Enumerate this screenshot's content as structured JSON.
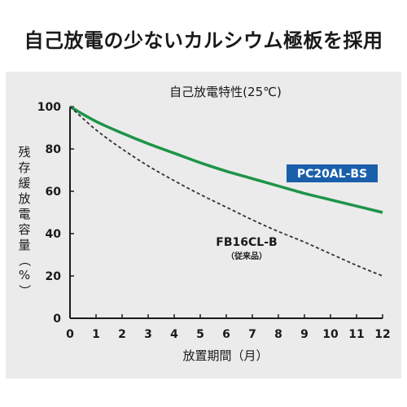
{
  "headline": "自己放電の少ないカルシウム極板を採用",
  "colors": {
    "panel_bg": "#ebebeb",
    "series_green": "#1e9448",
    "series_dashed": "#333333",
    "label_box": "#1a5fab"
  },
  "chart_data": {
    "type": "line",
    "title": "自己放電特性(25℃)",
    "xlabel": "放置期間（月）",
    "ylabel": "残存緩放電容量（%）",
    "xlim": [
      0,
      12
    ],
    "ylim": [
      0,
      100
    ],
    "xticks": [
      "0",
      "1",
      "2",
      "3",
      "4",
      "5",
      "6",
      "7",
      "8",
      "9",
      "10",
      "11",
      "12"
    ],
    "yticks": [
      "0",
      "20",
      "40",
      "60",
      "80",
      "100"
    ],
    "grid": false,
    "series": [
      {
        "name": "PC20AL-BS",
        "style": "solid",
        "x": [
          0,
          1,
          2,
          3,
          4,
          5,
          6,
          7,
          8,
          9,
          10,
          11,
          12
        ],
        "values": [
          100,
          93,
          87.5,
          82.5,
          78,
          73.5,
          69.5,
          66,
          62.5,
          59,
          56,
          53,
          50
        ]
      },
      {
        "name": "FB16CL-B",
        "sublabel": "（従来品）",
        "style": "dashed",
        "x": [
          0,
          1,
          2,
          3,
          4,
          5,
          6,
          7,
          8,
          9,
          10,
          11,
          12
        ],
        "values": [
          100,
          89,
          80,
          72,
          65,
          58.5,
          52.5,
          46.5,
          41,
          36,
          30.5,
          25,
          20
        ]
      }
    ]
  }
}
